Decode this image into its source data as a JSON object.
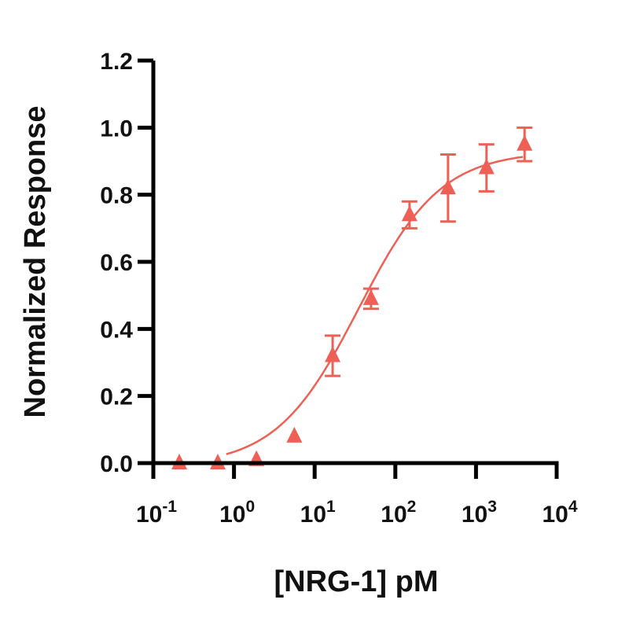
{
  "chart_data": {
    "type": "scatter",
    "title": "",
    "xlabel": "[NRG-1] pM",
    "ylabel": "Normalized Response",
    "xscale": "log",
    "xlim": [
      0.1,
      10000
    ],
    "ylim": [
      0,
      1.2
    ],
    "grid": false,
    "legend": null,
    "x_ticks": [
      {
        "base": "10",
        "exp": "-1",
        "value": 0.1
      },
      {
        "base": "10",
        "exp": "0",
        "value": 1
      },
      {
        "base": "10",
        "exp": "1",
        "value": 10
      },
      {
        "base": "10",
        "exp": "2",
        "value": 100
      },
      {
        "base": "10",
        "exp": "3",
        "value": 1000
      },
      {
        "base": "10",
        "exp": "4",
        "value": 10000
      }
    ],
    "y_ticks": [
      "0.0",
      "0.2",
      "0.4",
      "0.6",
      "0.8",
      "1.0",
      "1.2"
    ],
    "series": [
      {
        "name": "NRG-1",
        "color": "#EE6055",
        "marker": "triangle",
        "x": [
          0.21,
          0.63,
          1.9,
          5.6,
          16.7,
          50,
          150,
          450,
          1350,
          4000
        ],
        "y": [
          0.0,
          0.0,
          0.01,
          0.08,
          0.32,
          0.49,
          0.74,
          0.82,
          0.88,
          0.95
        ],
        "error": [
          0.0,
          0.0,
          0.0,
          0.0,
          0.06,
          0.03,
          0.04,
          0.1,
          0.07,
          0.05
        ]
      }
    ],
    "fit": {
      "type": "4PL sigmoid",
      "bottom": -0.01,
      "top": 0.93,
      "ec50_pM": 35,
      "hill": 0.85,
      "x_range": [
        0.8,
        3800
      ]
    }
  }
}
